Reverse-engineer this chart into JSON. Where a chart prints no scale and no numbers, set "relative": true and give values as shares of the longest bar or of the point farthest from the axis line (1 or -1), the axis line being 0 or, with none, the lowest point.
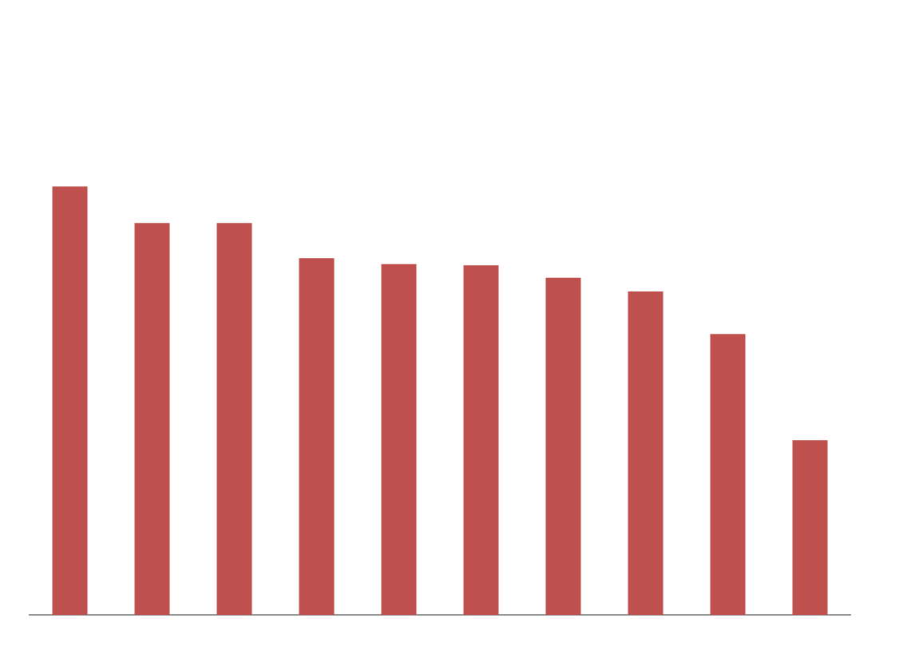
{
  "chart_data": {
    "type": "bar",
    "relative": true,
    "color": "#c0504d",
    "categories": [
      null,
      null,
      null,
      null,
      null,
      null,
      null,
      null,
      null,
      null
    ],
    "values": [
      1,
      0.915,
      0.915,
      0.833,
      0.819,
      0.816,
      0.787,
      0.755,
      0.656,
      0.408
    ]
  }
}
